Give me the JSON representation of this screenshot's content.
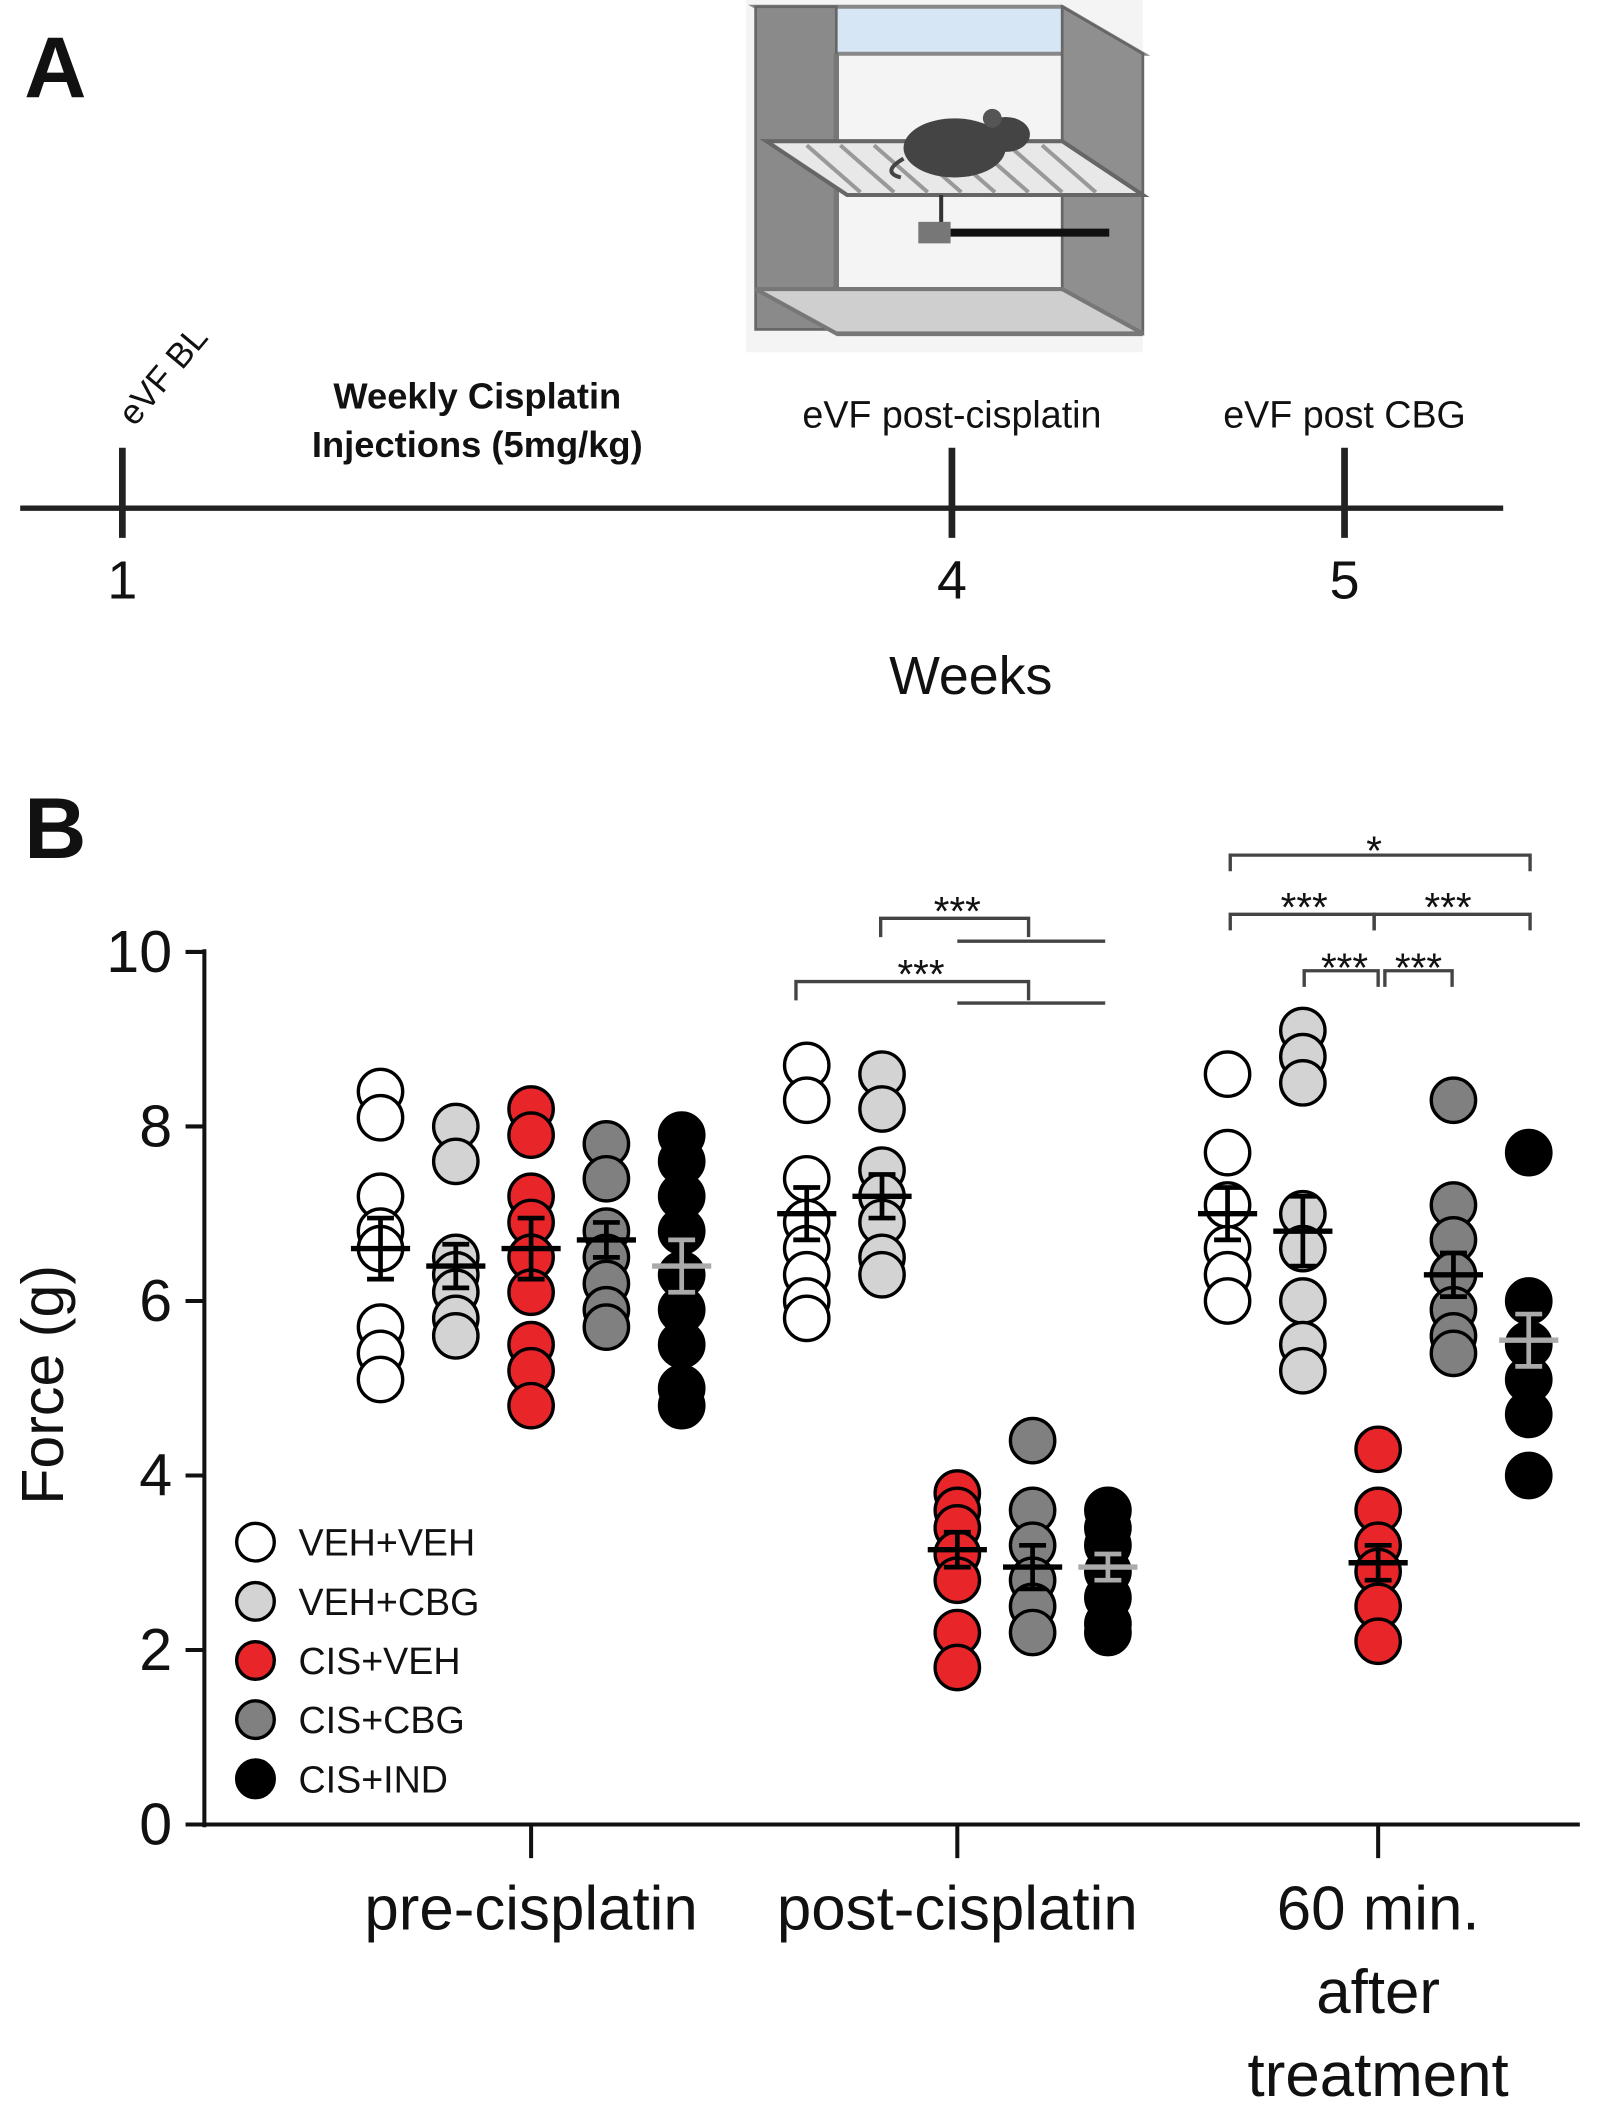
{
  "panel_a": {
    "label": "A",
    "events": [
      "eVF BL",
      "eVF post-cisplatin",
      "eVF post CBG"
    ],
    "injection_text": [
      "Weekly Cisplatin",
      "Injections (5mg/kg)"
    ],
    "ticks": [
      "1",
      "4",
      "5"
    ],
    "axis_label": "Weeks"
  },
  "panel_b_label": "B",
  "chart_data": {
    "type": "dot",
    "y_label": "Force (g)",
    "categories": [
      "pre-cisplatin",
      "post-cisplatin",
      "60 min.\nafter\ntreatment"
    ],
    "ylim": [
      0,
      10
    ],
    "yticks": [
      0,
      2,
      4,
      6,
      8,
      10
    ],
    "series": [
      {
        "name": "VEH+VEH",
        "color": "#ffffff",
        "error_color": "#000000",
        "values": [
          6.6,
          7.0,
          7.0
        ],
        "errors": [
          0.35,
          0.3,
          0.3
        ],
        "points": [
          [
            8.4,
            8.1,
            7.2,
            6.8,
            6.6,
            5.7,
            5.4,
            5.1
          ],
          [
            8.7,
            8.3,
            7.4,
            6.9,
            6.6,
            6.3,
            6.0,
            5.8
          ],
          [
            8.6,
            7.7,
            7.1,
            6.6,
            6.3,
            6.0
          ]
        ]
      },
      {
        "name": "VEH+CBG",
        "color": "#d3d3d3",
        "error_color": "#000000",
        "values": [
          6.4,
          7.2,
          6.8
        ],
        "errors": [
          0.25,
          0.25,
          0.4
        ],
        "points": [
          [
            8.0,
            7.6,
            6.5,
            6.3,
            6.1,
            5.8,
            5.6
          ],
          [
            8.6,
            8.2,
            7.5,
            7.2,
            6.9,
            6.5,
            6.3
          ],
          [
            9.1,
            8.8,
            8.5,
            7.0,
            6.6,
            6.0,
            5.5,
            5.2
          ]
        ]
      },
      {
        "name": "CIS+VEH",
        "color": "#e8262a",
        "error_color": "#000000",
        "values": [
          6.6,
          3.15,
          3.0
        ],
        "errors": [
          0.35,
          0.2,
          0.2
        ],
        "points": [
          [
            8.2,
            7.9,
            7.2,
            6.9,
            6.5,
            6.1,
            5.5,
            5.2,
            4.8
          ],
          [
            3.8,
            3.6,
            3.4,
            3.1,
            2.8,
            2.2,
            1.8
          ],
          [
            4.3,
            3.6,
            3.2,
            2.9,
            2.5,
            2.1
          ]
        ]
      },
      {
        "name": "CIS+CBG",
        "color": "#808080",
        "error_color": "#000000",
        "values": [
          6.7,
          2.95,
          6.3
        ],
        "errors": [
          0.2,
          0.25,
          0.25
        ],
        "points": [
          [
            7.8,
            7.4,
            6.8,
            6.5,
            6.2,
            5.9,
            5.7
          ],
          [
            4.4,
            3.6,
            3.2,
            2.8,
            2.5,
            2.2
          ],
          [
            8.3,
            7.1,
            6.7,
            6.3,
            5.9,
            5.6,
            5.4
          ]
        ]
      },
      {
        "name": "CIS+IND",
        "color": "#000000",
        "error_color": "#aaaaaa",
        "values": [
          6.4,
          2.95,
          5.55
        ],
        "errors": [
          0.3,
          0.15,
          0.3
        ],
        "points": [
          [
            7.9,
            7.6,
            7.2,
            6.8,
            6.3,
            5.9,
            5.5,
            5.0,
            4.8
          ],
          [
            3.6,
            3.4,
            3.2,
            2.9,
            2.6,
            2.3,
            2.2
          ],
          [
            7.7,
            6.0,
            5.5,
            5.1,
            4.7,
            4.0
          ]
        ]
      }
    ],
    "annotations": [
      {
        "text": "***"
      },
      {
        "text": "***"
      },
      {
        "text": "*"
      },
      {
        "text": "***"
      },
      {
        "text": "***"
      },
      {
        "text": "***"
      },
      {
        "text": "***"
      }
    ]
  }
}
